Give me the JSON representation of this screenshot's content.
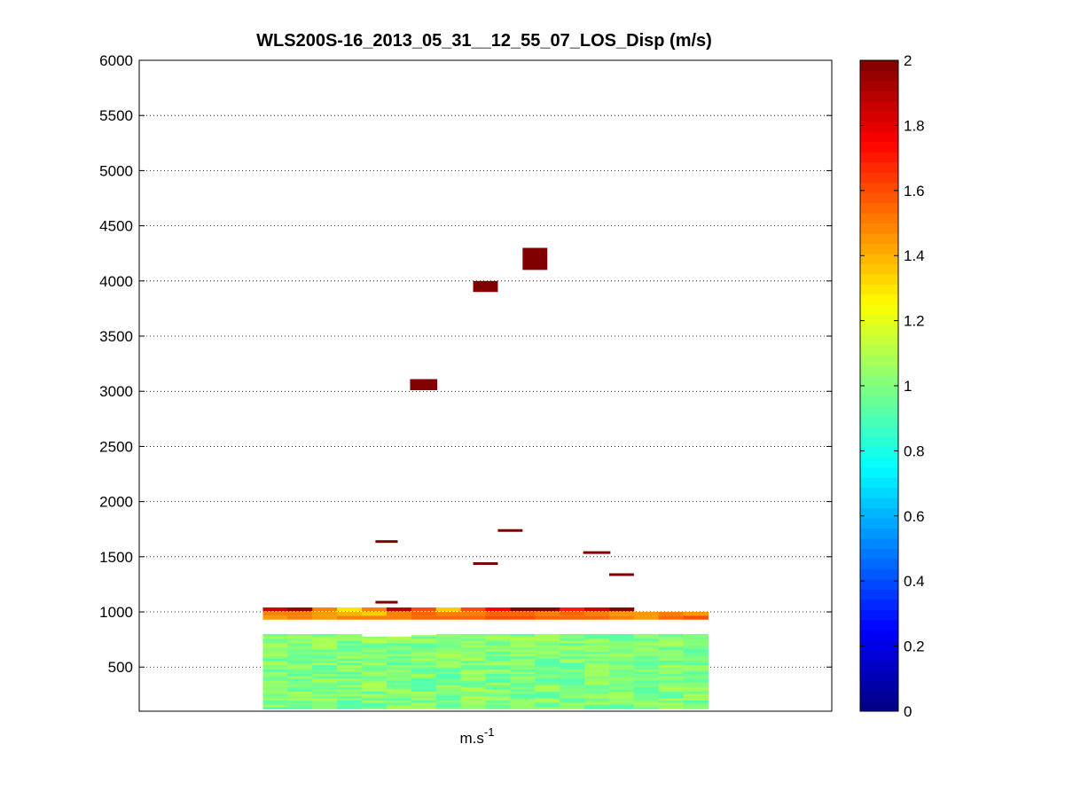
{
  "chart_data": {
    "type": "heatmap",
    "title": "WLS200S-16_2013_05_31__12_55_07_LOS_Disp (m/s)",
    "xlabel": "m.s",
    "xlabel_superscript": "-1",
    "ylabel": "",
    "ylim": [
      100,
      6000
    ],
    "yticks": [
      500,
      1000,
      1500,
      2000,
      2500,
      3000,
      3500,
      4000,
      4500,
      5000,
      5500,
      6000
    ],
    "x_cells": 18,
    "grid": "horizontal dotted",
    "colorbar": {
      "colormap": "jet",
      "clim": [
        0,
        2
      ],
      "ticks": [
        "0",
        "0.2",
        "0.4",
        "0.6",
        "0.8",
        "1",
        "1.2",
        "1.4",
        "1.6",
        "1.8",
        "2"
      ]
    },
    "dense_block": {
      "x_range": [
        5,
        23
      ],
      "alt_range": [
        120,
        800
      ],
      "row_height": 20,
      "value_range": [
        0.9,
        1.1
      ]
    },
    "ridge_values": [
      {
        "alt": 1020,
        "values": [
          1.85,
          1.95,
          1.5,
          1.3,
          1.5,
          1.9,
          1.6,
          1.35,
          1.6,
          1.75,
          1.98,
          1.98,
          1.7,
          1.85,
          1.98,
          null,
          null,
          null
        ]
      },
      {
        "alt": 980,
        "values": [
          1.5,
          1.5,
          1.45,
          1.4,
          1.35,
          1.5,
          1.55,
          1.5,
          1.5,
          1.55,
          1.55,
          1.5,
          1.55,
          1.5,
          1.45,
          1.45,
          1.5,
          1.45
        ]
      },
      {
        "alt": 945,
        "values": [
          1.45,
          1.5,
          1.45,
          1.5,
          1.5,
          1.5,
          1.55,
          1.55,
          1.55,
          1.6,
          1.6,
          1.55,
          1.55,
          1.55,
          1.5,
          1.45,
          1.55,
          1.6
        ]
      }
    ],
    "outliers": [
      {
        "x": 10.0,
        "alt": 1090,
        "value": 2
      },
      {
        "x": 10.0,
        "alt": 1640,
        "value": 2
      },
      {
        "x": 11.5,
        "alt": 3060,
        "value": 2
      },
      {
        "x": 14.0,
        "alt": 1440,
        "value": 2
      },
      {
        "x": 14.0,
        "alt": 3950,
        "value": 2
      },
      {
        "x": 15.0,
        "alt": 1740,
        "value": 2
      },
      {
        "x": 16.0,
        "alt": 4200,
        "value": 2
      },
      {
        "x": 18.5,
        "alt": 1540,
        "value": 2
      },
      {
        "x": 19.5,
        "alt": 1340,
        "value": 2
      }
    ]
  }
}
